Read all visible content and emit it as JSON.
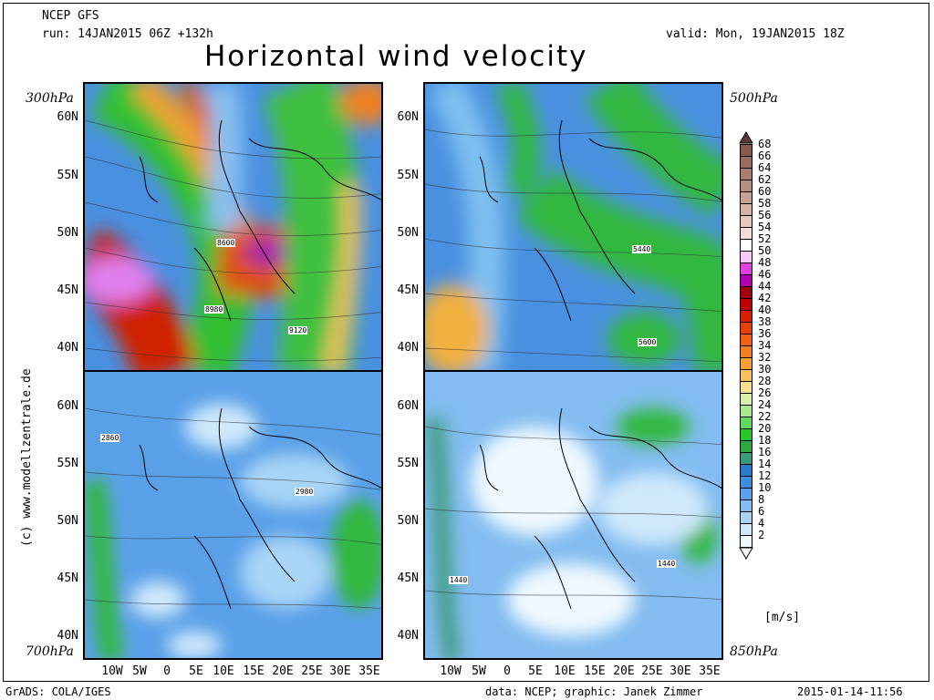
{
  "header": {
    "model": "NCEP GFS",
    "run": "run: 14JAN2015 06Z +132h",
    "valid": "valid: Mon, 19JAN2015 18Z",
    "title": "Horizontal wind velocity"
  },
  "panels": {
    "top_left": {
      "level": "300hPa",
      "contour_labels": [
        "8600",
        "8980",
        "9120"
      ]
    },
    "top_right": {
      "level": "500hPa",
      "contour_labels": [
        "5440",
        "5600"
      ]
    },
    "bottom_left": {
      "level": "700hPa",
      "contour_labels": [
        "2860",
        "2980"
      ]
    },
    "bottom_right": {
      "level": "850hPa",
      "contour_labels": [
        "1440",
        "1440"
      ]
    }
  },
  "lat_labels": [
    "60N",
    "55N",
    "50N",
    "45N",
    "40N"
  ],
  "lon_labels": [
    "10W",
    "5W",
    "0",
    "5E",
    "10E",
    "15E",
    "20E",
    "25E",
    "30E",
    "35E"
  ],
  "colorbar": {
    "unit": "[m/s]",
    "levels": [
      "68",
      "66",
      "64",
      "62",
      "60",
      "58",
      "56",
      "54",
      "52",
      "50",
      "48",
      "46",
      "44",
      "42",
      "40",
      "38",
      "36",
      "34",
      "32",
      "30",
      "28",
      "26",
      "24",
      "22",
      "20",
      "18",
      "16",
      "14",
      "12",
      "10",
      "8",
      "6",
      "4",
      "2"
    ],
    "colors": [
      "#8a5a4a",
      "#9a6c5c",
      "#aa7e6e",
      "#b99080",
      "#c8a292",
      "#d6b4a6",
      "#e4c8bc",
      "#f2ded6",
      "#ffffff",
      "#f8c8f8",
      "#e040e0",
      "#b000b0",
      "#a00010",
      "#c00000",
      "#d82000",
      "#e84000",
      "#f06010",
      "#f08020",
      "#f8a030",
      "#f8c060",
      "#f8e090",
      "#d8f0a8",
      "#a8e890",
      "#60d860",
      "#28c828",
      "#30a840",
      "#3c9a7c",
      "#2a7ad0",
      "#3c8ee0",
      "#5aa2ea",
      "#82bcf0",
      "#a8d4f6",
      "#cfe8fb",
      "#eef8ff"
    ],
    "top_color": "#5a3a30",
    "bottom_color": "#ffffff"
  },
  "credit_vertical": "(c) www.modellzentrale.de",
  "footer": {
    "left": "GrADS: COLA/IGES",
    "center": "data: NCEP; graphic: Janek Zimmer",
    "right": "2015-01-14-11:56"
  }
}
